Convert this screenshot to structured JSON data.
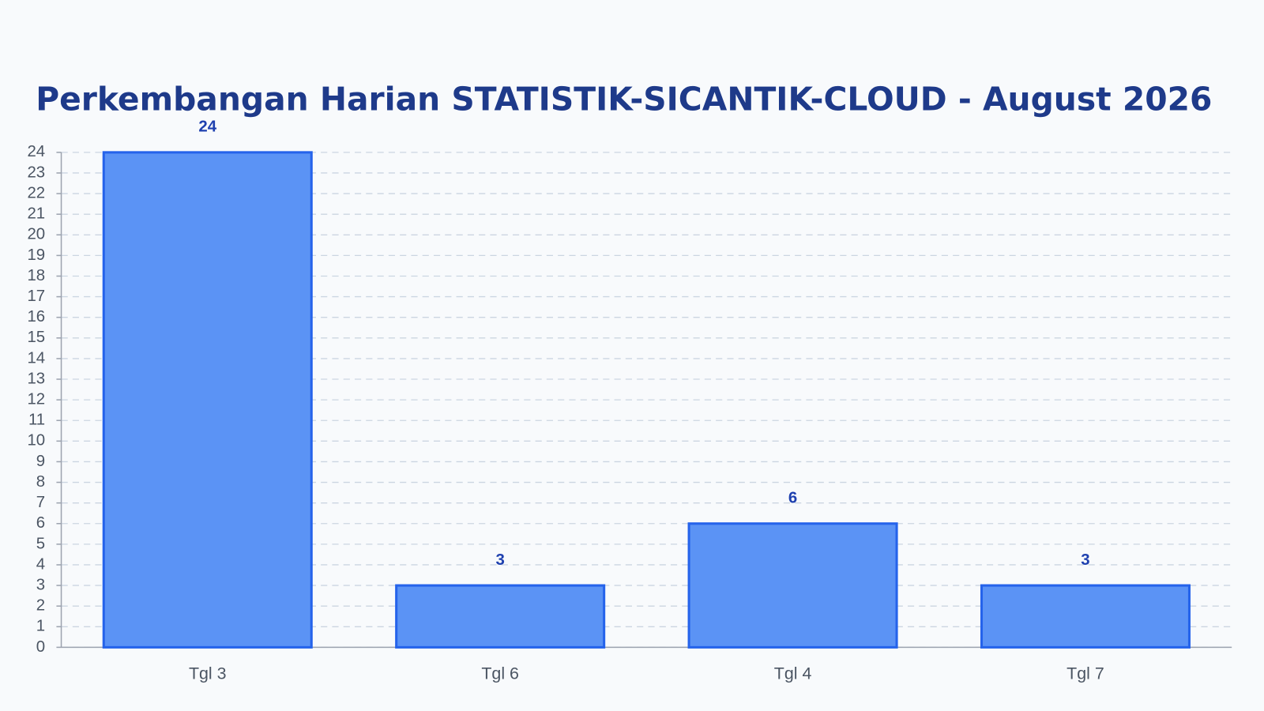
{
  "chart_data": {
    "type": "bar",
    "title": "Perkembangan Harian STATISTIK-SICANTIK-CLOUD - August 2026",
    "categories": [
      "Tgl 3",
      "Tgl 6",
      "Tgl 4",
      "Tgl 7"
    ],
    "values": [
      24,
      3,
      6,
      3
    ],
    "color": "#5b93f5",
    "border_color": "#2563eb",
    "ylim": [
      0,
      24
    ],
    "yticks": [
      0,
      1,
      2,
      3,
      4,
      5,
      6,
      7,
      8,
      9,
      10,
      11,
      12,
      13,
      14,
      15,
      16,
      17,
      18,
      19,
      20,
      21,
      22,
      23,
      24
    ],
    "grid": true
  }
}
